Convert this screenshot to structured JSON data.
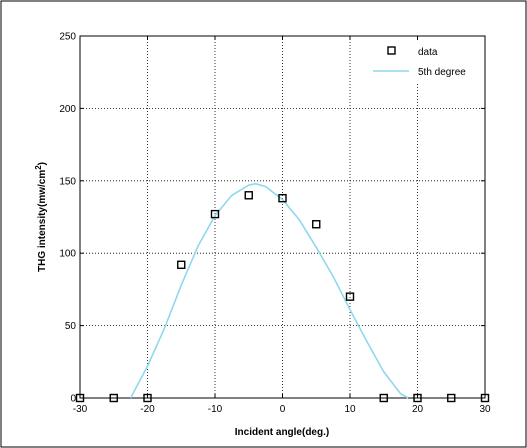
{
  "chart_data": {
    "type": "scatter",
    "title": "",
    "xlabel": "Incident angle(deg.)",
    "ylabel_main": "THG intensity(mw/cm",
    "ylabel_sup": "2",
    "ylabel_close": ")",
    "xlim": [
      -30,
      30
    ],
    "ylim": [
      0,
      250
    ],
    "xticks": [
      -30,
      -20,
      -10,
      0,
      10,
      20,
      30
    ],
    "yticks": [
      0,
      50,
      100,
      150,
      200,
      250
    ],
    "grid": true,
    "legend_position": "top-right",
    "series": [
      {
        "name": "data",
        "kind": "markers",
        "marker": "square",
        "color": "#000000",
        "x": [
          -30,
          -25,
          -20,
          -15,
          -10,
          -5,
          0,
          5,
          10,
          15,
          20,
          25,
          30
        ],
        "y": [
          0,
          0,
          0,
          92,
          127,
          140,
          138,
          120,
          70,
          0,
          0,
          0,
          0
        ]
      },
      {
        "name": "5th degree",
        "kind": "line",
        "color": "#8fd8ee",
        "x": [
          -22.5,
          -20,
          -17.5,
          -15,
          -12.5,
          -10,
          -7.5,
          -5,
          -4,
          -2.5,
          0,
          2.5,
          5,
          7.5,
          10,
          12.5,
          15,
          17.5,
          18.6
        ],
        "y": [
          0,
          22,
          48,
          78,
          105,
          126,
          140,
          147,
          148,
          146,
          137,
          123,
          104,
          84,
          61,
          39,
          18,
          3,
          0
        ]
      }
    ]
  }
}
